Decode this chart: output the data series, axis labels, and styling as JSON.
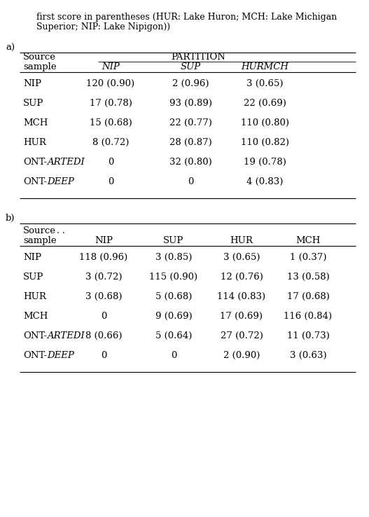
{
  "header_line1": "first score in parentheses (HUR: Lake Huron; MCH: Lake Michigan",
  "header_line2": "Superior; NIP: Lake Nipigon))",
  "section_a_label": "a)",
  "section_b_label": "b)",
  "table_a": {
    "partition_label": "PARTITION",
    "col_headers": [
      "NIP",
      "SUP",
      "HURMCH"
    ],
    "rows": [
      [
        "NIP",
        "120 (0.90)",
        "2 (0.96)",
        "3 (0.65)"
      ],
      [
        "SUP",
        "17 (0.78)",
        "93 (0.89)",
        "22 (0.69)"
      ],
      [
        "MCH",
        "15 (0.68)",
        "22 (0.77)",
        "110 (0.80)"
      ],
      [
        "HUR",
        "8 (0.72)",
        "28 (0.87)",
        "110 (0.82)"
      ],
      [
        "ONT-ARTEDI",
        "0",
        "32 (0.80)",
        "19 (0.78)"
      ],
      [
        "ONT-DEEP",
        "0",
        "0",
        "4 (0.83)"
      ]
    ],
    "italic_parts": {
      "ONT-ARTEDI": "ARTEDI",
      "ONT-DEEP": "DEEP"
    }
  },
  "table_b": {
    "col_headers": [
      "NIP",
      "SUP",
      "HUR",
      "MCH"
    ],
    "rows": [
      [
        "NIP",
        "118 (0.96)",
        "3 (0.85)",
        "3 (0.65)",
        "1 (0.37)"
      ],
      [
        "SUP",
        "3 (0.72)",
        "115 (0.90)",
        "12 (0.76)",
        "13 (0.58)"
      ],
      [
        "HUR",
        "3 (0.68)",
        "5 (0.68)",
        "114 (0.83)",
        "17 (0.68)"
      ],
      [
        "MCH",
        "0",
        "9 (0.69)",
        "17 (0.69)",
        "116 (0.84)"
      ],
      [
        "ONT-ARTEDI",
        "8 (0.66)",
        "5 (0.64)",
        "27 (0.72)",
        "11 (0.73)"
      ],
      [
        "ONT-DEEP",
        "0",
        "0",
        "2 (0.90)",
        "3 (0.63)"
      ]
    ],
    "italic_parts": {
      "ONT-ARTEDI": "ARTEDI",
      "ONT-DEEP": "DEEP"
    },
    "source_note": ". ."
  },
  "bg_color": "#ffffff",
  "text_color": "#000000",
  "font_size": 9.5,
  "small_font_size": 9.0
}
